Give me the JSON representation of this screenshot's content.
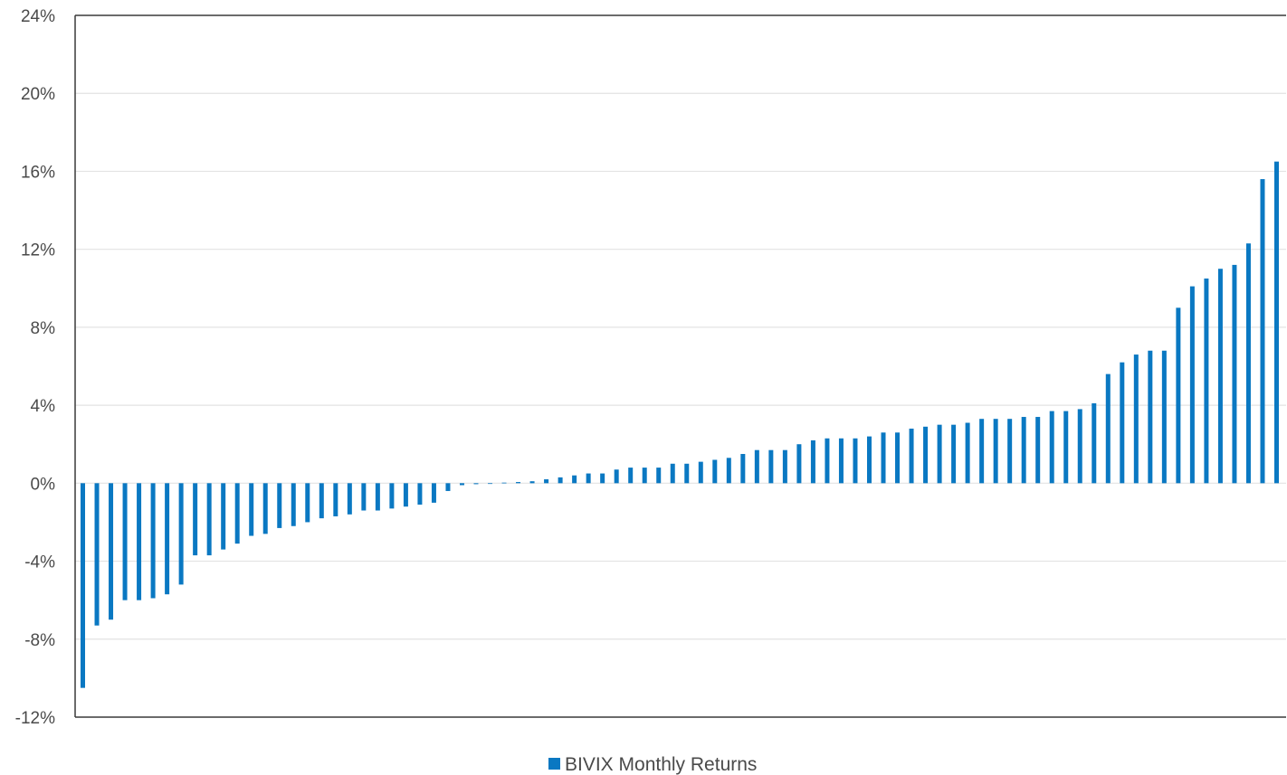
{
  "chart_data": {
    "type": "bar",
    "title": "",
    "xlabel": "",
    "ylabel": "",
    "ylim": [
      -12,
      24
    ],
    "y_ticks": [
      24,
      20,
      16,
      12,
      8,
      4,
      0,
      -4,
      -8,
      -12
    ],
    "y_tick_labels": [
      "24%",
      "20%",
      "16%",
      "12%",
      "8%",
      "4%",
      "0%",
      "-4%",
      "-8%",
      "-12%"
    ],
    "grid": true,
    "legend_position": "bottom",
    "bar_color": "#0a78c2",
    "series": [
      {
        "name": "BIVIX Monthly Returns",
        "values": [
          -10.5,
          -7.3,
          -7.0,
          -6.0,
          -6.0,
          -5.9,
          -5.7,
          -5.2,
          -3.7,
          -3.7,
          -3.4,
          -3.1,
          -2.7,
          -2.6,
          -2.3,
          -2.2,
          -2.0,
          -1.8,
          -1.7,
          -1.6,
          -1.4,
          -1.4,
          -1.3,
          -1.2,
          -1.1,
          -1.0,
          -0.4,
          -0.1,
          -0.05,
          -0.02,
          0.03,
          0.06,
          0.1,
          0.2,
          0.3,
          0.4,
          0.5,
          0.5,
          0.7,
          0.8,
          0.8,
          0.8,
          1.0,
          1.0,
          1.1,
          1.2,
          1.3,
          1.5,
          1.7,
          1.7,
          1.7,
          2.0,
          2.2,
          2.3,
          2.3,
          2.3,
          2.4,
          2.6,
          2.6,
          2.8,
          2.9,
          3.0,
          3.0,
          3.1,
          3.3,
          3.3,
          3.3,
          3.4,
          3.4,
          3.7,
          3.7,
          3.8,
          4.1,
          5.6,
          6.2,
          6.6,
          6.8,
          6.8,
          9.0,
          10.1,
          10.5,
          11.0,
          11.2,
          12.3,
          15.6,
          16.5
        ]
      }
    ]
  }
}
